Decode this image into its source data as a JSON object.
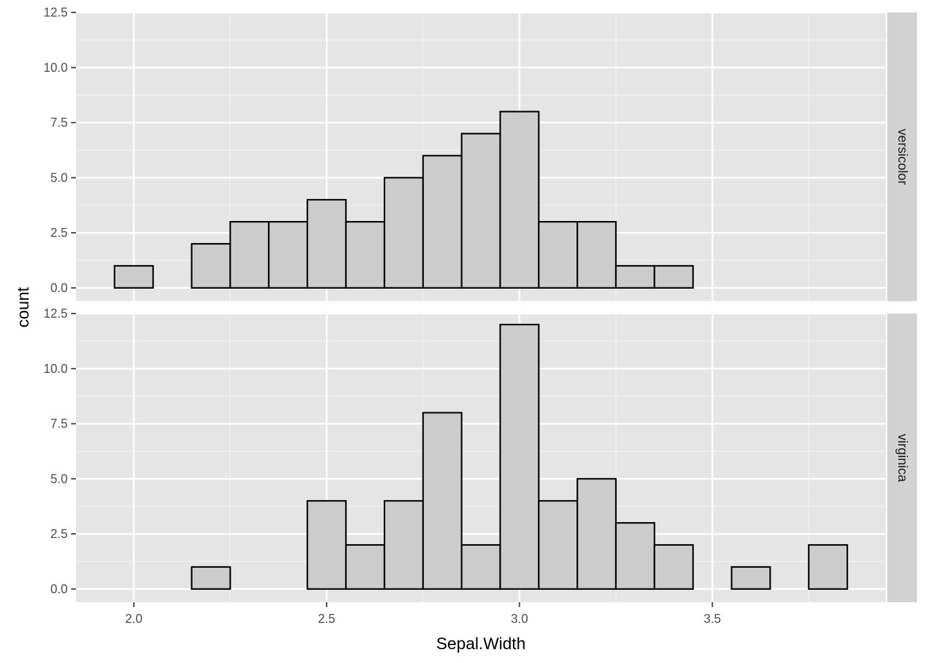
{
  "chart_data": {
    "type": "bar",
    "subtype": "histogram",
    "xlabel": "Sepal.Width",
    "ylabel": "count",
    "xlim": [
      1.85,
      3.95
    ],
    "ylim": [
      -0.6,
      12.5
    ],
    "x_ticks": [
      "2.0",
      "2.5",
      "3.0",
      "3.5"
    ],
    "x_tick_values": [
      2.0,
      2.5,
      3.0,
      3.5
    ],
    "y_ticks": [
      "0.0",
      "2.5",
      "5.0",
      "7.5",
      "10.0",
      "12.5"
    ],
    "y_tick_values": [
      0,
      2.5,
      5,
      7.5,
      10,
      12.5
    ],
    "bin_width": 0.1,
    "bin_starts": [
      1.95,
      2.05,
      2.15,
      2.25,
      2.35,
      2.45,
      2.55,
      2.65,
      2.75,
      2.85,
      2.95,
      3.05,
      3.15,
      3.25,
      3.35,
      3.45,
      3.55,
      3.65,
      3.75
    ],
    "grid": true,
    "bar_fill": "#cccccc",
    "bar_stroke": "#000000",
    "panel_background": "#e5e5e5",
    "strip_background": "#d2d2d2",
    "facets": [
      {
        "label": "versicolor",
        "counts": [
          1,
          0,
          2,
          3,
          3,
          4,
          3,
          5,
          6,
          7,
          8,
          3,
          3,
          1,
          1,
          0,
          0,
          0,
          0
        ]
      },
      {
        "label": "virginica",
        "counts": [
          0,
          0,
          1,
          0,
          0,
          4,
          2,
          4,
          8,
          2,
          12,
          4,
          5,
          3,
          2,
          0,
          1,
          0,
          2
        ]
      }
    ]
  }
}
